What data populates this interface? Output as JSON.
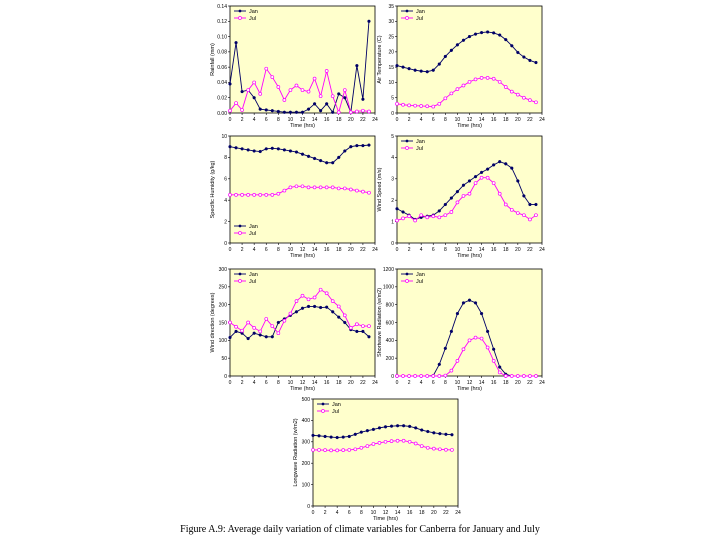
{
  "caption": "Figure A.9: Average daily variation of climate variables for Canberra for January and July",
  "colors": {
    "plot_bg": "#ffffcc",
    "jan": "#000066",
    "jul": "#ff00ff",
    "axis": "#000000"
  },
  "chart_data": [
    {
      "type": "line",
      "ylabel": "Rainfall (mm)",
      "xlabel": "Time (hrs)",
      "xlim": [
        0,
        24
      ],
      "xticks": [
        0,
        2,
        4,
        6,
        8,
        10,
        12,
        14,
        16,
        18,
        20,
        22,
        24
      ],
      "ylim": [
        0,
        0.14
      ],
      "yticks": [
        "0.00",
        "0.02",
        "0.04",
        "0.06",
        "0.08",
        "0.10",
        "0.12",
        "0.14"
      ],
      "legend": "top-left",
      "x": [
        0,
        1,
        2,
        3,
        4,
        5,
        6,
        7,
        8,
        9,
        10,
        11,
        12,
        13,
        14,
        15,
        16,
        17,
        18,
        19,
        20,
        21,
        22,
        23
      ],
      "series": [
        {
          "name": "Jan",
          "values": [
            0.038,
            0.092,
            0.028,
            0.03,
            0.02,
            0.005,
            0.004,
            0.003,
            0.002,
            0.001,
            0.001,
            0.001,
            0.001,
            0.005,
            0.012,
            0.003,
            0.012,
            0.001,
            0.025,
            0.02,
            0.001,
            0.062,
            0.018,
            0.12
          ]
        },
        {
          "name": "Jul",
          "values": [
            0.003,
            0.013,
            0.004,
            0.03,
            0.04,
            0.025,
            0.058,
            0.047,
            0.034,
            0.017,
            0.03,
            0.036,
            0.03,
            0.028,
            0.045,
            0.022,
            0.055,
            0.022,
            0.001,
            0.03,
            0.001,
            0.002,
            0.003,
            0.002
          ]
        }
      ]
    },
    {
      "type": "line",
      "ylabel": "Air Temperature (C)",
      "xlabel": "Time (hrs)",
      "xlim": [
        0,
        24
      ],
      "xticks": [
        0,
        2,
        4,
        6,
        8,
        10,
        12,
        14,
        16,
        18,
        20,
        22,
        24
      ],
      "ylim": [
        0,
        35
      ],
      "yticks": [
        "0",
        "5",
        "10",
        "15",
        "20",
        "25",
        "30",
        "35"
      ],
      "legend": "top-left",
      "x": [
        0,
        1,
        2,
        3,
        4,
        5,
        6,
        7,
        8,
        9,
        10,
        11,
        12,
        13,
        14,
        15,
        16,
        17,
        18,
        19,
        20,
        21,
        22,
        23
      ],
      "series": [
        {
          "name": "Jan",
          "values": [
            15.5,
            15,
            14.5,
            14,
            13.7,
            13.5,
            14,
            16,
            18.5,
            20.5,
            22.3,
            23.8,
            25,
            25.8,
            26.3,
            26.5,
            26.2,
            25.5,
            24,
            22,
            19.8,
            18.3,
            17.2,
            16.5
          ]
        },
        {
          "name": "Jul",
          "values": [
            3,
            2.7,
            2.5,
            2.4,
            2.3,
            2.2,
            2.1,
            3,
            4.8,
            6.4,
            7.8,
            9,
            10.2,
            11,
            11.5,
            11.5,
            11.2,
            10.2,
            8.5,
            7,
            6,
            5,
            4.2,
            3.5
          ]
        }
      ]
    },
    {
      "type": "line",
      "ylabel": "Specific Humidity (g/kg)",
      "xlabel": "Time (hrs)",
      "xlim": [
        0,
        24
      ],
      "xticks": [
        0,
        2,
        4,
        6,
        8,
        10,
        12,
        14,
        16,
        18,
        20,
        22,
        24
      ],
      "ylim": [
        0,
        10
      ],
      "yticks": [
        "0",
        "2",
        "4",
        "6",
        "8",
        "10"
      ],
      "legend": "bottom-left",
      "x": [
        0,
        1,
        2,
        3,
        4,
        5,
        6,
        7,
        8,
        9,
        10,
        11,
        12,
        13,
        14,
        15,
        16,
        17,
        18,
        19,
        20,
        21,
        22,
        23
      ],
      "series": [
        {
          "name": "Jan",
          "values": [
            9,
            8.9,
            8.8,
            8.7,
            8.6,
            8.55,
            8.8,
            8.85,
            8.8,
            8.7,
            8.6,
            8.5,
            8.3,
            8.1,
            7.9,
            7.7,
            7.5,
            7.5,
            8,
            8.6,
            9,
            9.1,
            9.1,
            9.15
          ]
        },
        {
          "name": "Jul",
          "values": [
            4.5,
            4.5,
            4.5,
            4.5,
            4.5,
            4.5,
            4.5,
            4.5,
            4.6,
            4.9,
            5.2,
            5.3,
            5.3,
            5.2,
            5.2,
            5.2,
            5.2,
            5.2,
            5.1,
            5.1,
            5,
            4.9,
            4.8,
            4.7
          ]
        }
      ]
    },
    {
      "type": "line",
      "ylabel": "Wind Speed (m/s)",
      "xlabel": "Time (hrs)",
      "xlim": [
        0,
        24
      ],
      "xticks": [
        0,
        2,
        4,
        6,
        8,
        10,
        12,
        14,
        16,
        18,
        20,
        22,
        24
      ],
      "ylim": [
        0,
        5
      ],
      "yticks": [
        "0",
        "1",
        "2",
        "3",
        "4",
        "5"
      ],
      "legend": "top-left",
      "x": [
        0,
        1,
        2,
        3,
        4,
        5,
        6,
        7,
        8,
        9,
        10,
        11,
        12,
        13,
        14,
        15,
        16,
        17,
        18,
        19,
        20,
        21,
        22,
        23
      ],
      "series": [
        {
          "name": "Jan",
          "values": [
            1.6,
            1.45,
            1.3,
            1.1,
            1.2,
            1.25,
            1.3,
            1.5,
            1.8,
            2.1,
            2.4,
            2.7,
            2.9,
            3.1,
            3.3,
            3.45,
            3.65,
            3.8,
            3.7,
            3.5,
            2.9,
            2.2,
            1.8,
            1.8
          ]
        },
        {
          "name": "Jul",
          "values": [
            1.05,
            1.15,
            1.25,
            1.05,
            1.3,
            1.2,
            1.25,
            1.2,
            1.3,
            1.45,
            1.9,
            2.2,
            2.3,
            2.8,
            3.05,
            3.05,
            2.8,
            2.3,
            1.8,
            1.55,
            1.4,
            1.3,
            1.1,
            1.3
          ]
        }
      ]
    },
    {
      "type": "line",
      "ylabel": "Wind direction (degrees)",
      "xlabel": "Time (hrs)",
      "xlim": [
        0,
        24
      ],
      "xticks": [
        0,
        2,
        4,
        6,
        8,
        10,
        12,
        14,
        16,
        18,
        20,
        22,
        24
      ],
      "ylim": [
        0,
        300
      ],
      "yticks": [
        "0",
        "50",
        "100",
        "150",
        "200",
        "250",
        "300"
      ],
      "legend": "top-left",
      "x": [
        0,
        1,
        2,
        3,
        4,
        5,
        6,
        7,
        8,
        9,
        10,
        11,
        12,
        13,
        14,
        15,
        16,
        17,
        18,
        19,
        20,
        21,
        22,
        23
      ],
      "series": [
        {
          "name": "Jan",
          "values": [
            108,
            125,
            120,
            105,
            120,
            115,
            110,
            110,
            150,
            160,
            170,
            180,
            190,
            195,
            195,
            192,
            193,
            180,
            165,
            150,
            130,
            125,
            125,
            110
          ]
        },
        {
          "name": "Jul",
          "values": [
            150,
            138,
            127,
            150,
            135,
            125,
            160,
            140,
            120,
            155,
            175,
            210,
            225,
            215,
            220,
            242,
            232,
            210,
            195,
            170,
            135,
            145,
            140,
            140
          ]
        }
      ]
    },
    {
      "type": "line",
      "ylabel": "Shortwave Radiation (w/m2)",
      "xlabel": "Time (hrs)",
      "xlim": [
        0,
        24
      ],
      "xticks": [
        0,
        2,
        4,
        6,
        8,
        10,
        12,
        14,
        16,
        18,
        20,
        22,
        24
      ],
      "ylim": [
        0,
        1200
      ],
      "yticks": [
        "0",
        "200",
        "400",
        "600",
        "800",
        "1000",
        "1200"
      ],
      "legend": "top-left",
      "x": [
        0,
        1,
        2,
        3,
        4,
        5,
        6,
        7,
        8,
        9,
        10,
        11,
        12,
        13,
        14,
        15,
        16,
        17,
        18,
        19,
        20,
        21,
        22,
        23
      ],
      "series": [
        {
          "name": "Jan",
          "values": [
            0,
            0,
            0,
            0,
            0,
            0,
            5,
            130,
            310,
            500,
            700,
            820,
            850,
            820,
            700,
            500,
            300,
            100,
            20,
            0,
            0,
            0,
            0,
            0
          ]
        },
        {
          "name": "Jul",
          "values": [
            0,
            0,
            0,
            0,
            0,
            0,
            0,
            0,
            5,
            60,
            170,
            300,
            400,
            430,
            420,
            320,
            170,
            40,
            0,
            0,
            0,
            0,
            0,
            0
          ]
        }
      ]
    },
    {
      "type": "line",
      "ylabel": "Longwave Radiation (w/m2)",
      "xlabel": "Time (hrs)",
      "xlim": [
        0,
        24
      ],
      "xticks": [
        0,
        2,
        4,
        6,
        8,
        10,
        12,
        14,
        16,
        18,
        20,
        22,
        24
      ],
      "ylim": [
        0,
        500
      ],
      "yticks": [
        "0",
        "100",
        "200",
        "300",
        "400",
        "500"
      ],
      "legend": "top-left",
      "x": [
        0,
        1,
        2,
        3,
        4,
        5,
        6,
        7,
        8,
        9,
        10,
        11,
        12,
        13,
        14,
        15,
        16,
        17,
        18,
        19,
        20,
        21,
        22,
        23
      ],
      "series": [
        {
          "name": "Jan",
          "values": [
            330,
            328,
            325,
            322,
            320,
            322,
            325,
            335,
            345,
            352,
            358,
            365,
            370,
            373,
            375,
            375,
            372,
            365,
            355,
            348,
            342,
            338,
            335,
            333
          ]
        },
        {
          "name": "Jul",
          "values": [
            262,
            262,
            261,
            260,
            260,
            261,
            262,
            265,
            272,
            280,
            290,
            295,
            300,
            303,
            305,
            305,
            300,
            292,
            280,
            272,
            268,
            265,
            263,
            262
          ]
        }
      ]
    }
  ]
}
